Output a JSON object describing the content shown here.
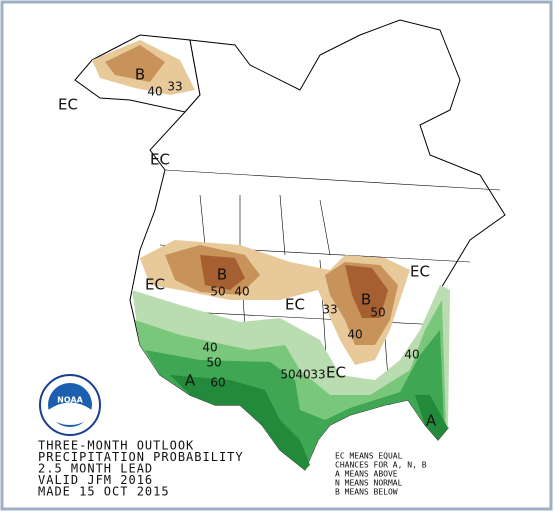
{
  "logo_text": "NOAA",
  "outlook_lines": [
    "THREE-MONTH OUTLOOK",
    "PRECIPITATION PROBABILITY",
    "2.5 MONTH LEAD",
    "VALID JFM 2016",
    "MADE 15 OCT 2015"
  ],
  "legend_lines": [
    "EC MEANS EQUAL",
    "CHANCES FOR A, N, B",
    "A MEANS ABOVE",
    "N MEANS NORMAL",
    "B MEANS BELOW"
  ],
  "map_labels": [
    "EC",
    "B",
    "40",
    "33",
    "EC",
    "EC",
    "B",
    "50",
    "40",
    "EC",
    "B",
    "33",
    "50",
    "40",
    "EC",
    "40",
    "50",
    "60",
    "A",
    "50",
    "40",
    "33",
    "EC",
    "40",
    "A"
  ]
}
